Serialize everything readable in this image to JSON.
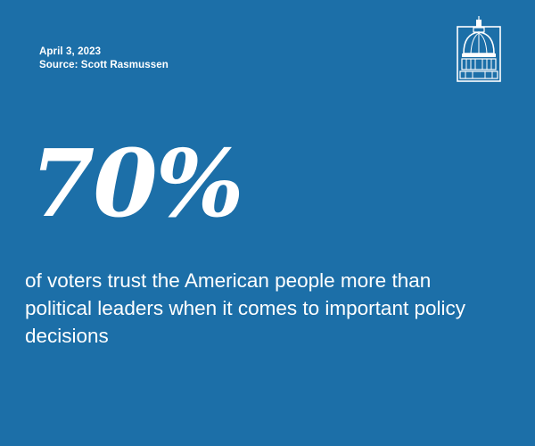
{
  "meta": {
    "date": "April 3, 2023",
    "source": "Source: Scott Rasmussen"
  },
  "logo": {
    "icon": "capitol-dome-icon"
  },
  "stat": {
    "value": "70%",
    "caption": "of voters trust the American people more than political leaders when it comes to important policy decisions"
  },
  "colors": {
    "background": "#1c6fa8",
    "text": "#ffffff"
  }
}
